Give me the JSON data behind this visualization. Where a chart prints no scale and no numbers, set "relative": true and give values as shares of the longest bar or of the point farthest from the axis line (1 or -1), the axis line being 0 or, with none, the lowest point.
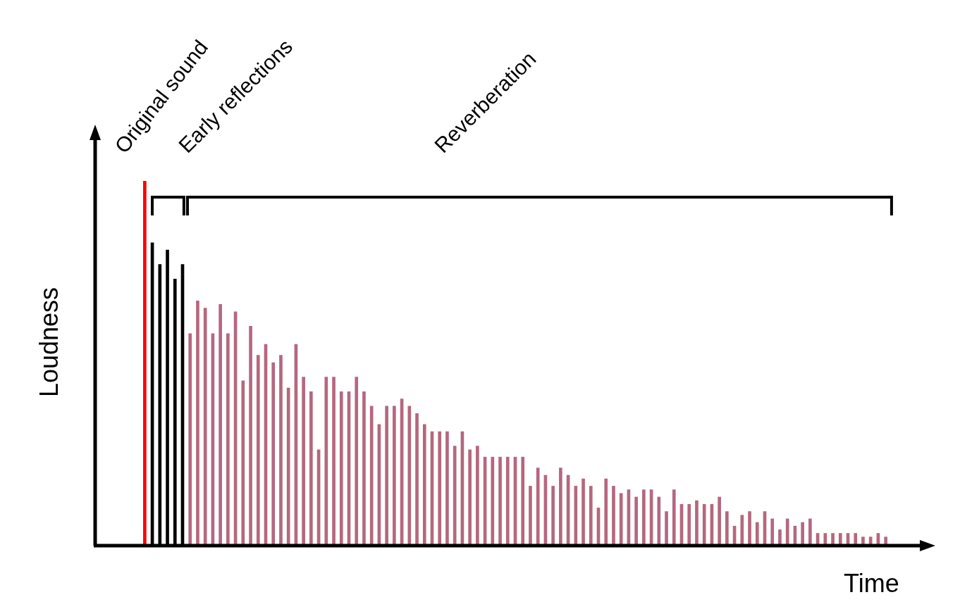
{
  "chart_data": {
    "type": "bar",
    "relative": true,
    "xlabel": "Time",
    "ylabel": "Loudness",
    "annotations": [
      "Original sound",
      "Early reflections",
      "Reverberation"
    ],
    "categories": [
      null,
      null,
      null,
      null,
      null,
      null,
      null,
      null,
      null,
      null,
      null,
      null,
      null,
      null,
      null,
      null,
      null,
      null,
      null,
      null,
      null,
      null,
      null,
      null,
      null,
      null,
      null,
      null,
      null,
      null,
      null,
      null,
      null,
      null,
      null,
      null,
      null,
      null,
      null,
      null,
      null,
      null,
      null,
      null,
      null,
      null,
      null,
      null,
      null,
      null,
      null,
      null,
      null,
      null,
      null,
      null,
      null,
      null,
      null,
      null,
      null,
      null,
      null,
      null,
      null,
      null,
      null,
      null,
      null,
      null,
      null,
      null,
      null,
      null,
      null,
      null,
      null,
      null,
      null,
      null,
      null,
      null,
      null,
      null,
      null,
      null,
      null,
      null,
      null,
      null,
      null,
      null,
      null,
      null,
      null,
      null,
      null,
      null,
      null
    ],
    "values": [
      1,
      0.83,
      0.77,
      0.81,
      0.73,
      0.77,
      0.58,
      0.67,
      0.65,
      0.58,
      0.66,
      0.58,
      0.64,
      0.45,
      0.6,
      0.52,
      0.55,
      0.5,
      0.52,
      0.43,
      0.55,
      0.46,
      0.42,
      0.26,
      0.46,
      0.46,
      0.42,
      0.42,
      0.46,
      0.42,
      0.38,
      0.33,
      0.38,
      0.38,
      0.4,
      0.38,
      0.36,
      0.33,
      0.31,
      0.31,
      0.31,
      0.27,
      0.31,
      0.26,
      0.27,
      0.24,
      0.24,
      0.24,
      0.24,
      0.24,
      0.24,
      0.16,
      0.21,
      0.19,
      0.16,
      0.21,
      0.19,
      0.16,
      0.18,
      0.16,
      0.1,
      0.18,
      0.16,
      0.14,
      0.15,
      0.13,
      0.15,
      0.15,
      0.13,
      0.09,
      0.15,
      0.11,
      0.11,
      0.12,
      0.11,
      0.11,
      0.13,
      0.09,
      0.05,
      0.08,
      0.09,
      0.06,
      0.09,
      0.07,
      0.04,
      0.07,
      0.05,
      0.06,
      0.07,
      0.03,
      0.03,
      0.03,
      0.03,
      0.03,
      0.03,
      0.02,
      0.02,
      0.03,
      0.02
    ],
    "colors": [
      "#ff0000",
      "#000000",
      "#000000",
      "#000000",
      "#000000",
      "#000000",
      "#b5677f",
      "#b5677f",
      "#b5677f",
      "#b5677f",
      "#b5677f",
      "#b5677f",
      "#b5677f",
      "#b5677f",
      "#b5677f",
      "#b5677f",
      "#b5677f",
      "#b5677f",
      "#b5677f",
      "#b5677f",
      "#b5677f",
      "#b5677f",
      "#b5677f",
      "#b5677f",
      "#b5677f",
      "#b5677f",
      "#b5677f",
      "#b5677f",
      "#b5677f",
      "#b5677f",
      "#b5677f",
      "#b5677f",
      "#b5677f",
      "#b5677f",
      "#b5677f",
      "#b5677f",
      "#b5677f",
      "#b5677f",
      "#b5677f",
      "#b5677f",
      "#b5677f",
      "#b5677f",
      "#b5677f",
      "#b5677f",
      "#b5677f",
      "#b5677f",
      "#b5677f",
      "#b5677f",
      "#b5677f",
      "#b5677f",
      "#b5677f",
      "#b5677f",
      "#b5677f",
      "#b5677f",
      "#b5677f",
      "#b5677f",
      "#b5677f",
      "#b5677f",
      "#b5677f",
      "#b5677f",
      "#b5677f",
      "#b5677f",
      "#b5677f",
      "#b5677f",
      "#b5677f",
      "#b5677f",
      "#b5677f",
      "#b5677f",
      "#b5677f",
      "#b5677f",
      "#b5677f",
      "#b5677f",
      "#b5677f",
      "#b5677f",
      "#b5677f",
      "#b5677f",
      "#b5677f",
      "#b5677f",
      "#b5677f",
      "#b5677f",
      "#b5677f",
      "#b5677f",
      "#b5677f",
      "#b5677f",
      "#b5677f",
      "#b5677f",
      "#b5677f",
      "#b5677f",
      "#b5677f",
      "#b5677f",
      "#b5677f",
      "#b5677f",
      "#b5677f",
      "#b5677f",
      "#b5677f",
      "#b5677f",
      "#b5677f",
      "#b5677f",
      "#b5677f"
    ]
  }
}
